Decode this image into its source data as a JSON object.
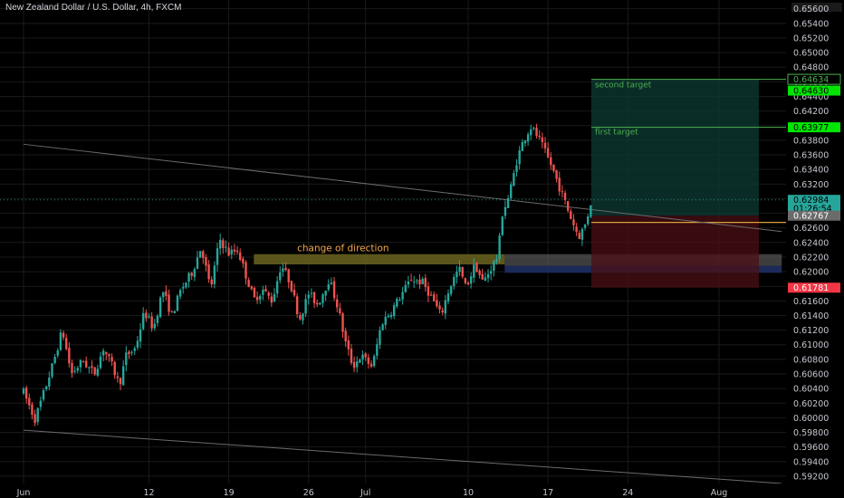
{
  "header": {
    "title": "New Zealand Dollar / U.S. Dollar, 4h, FXCM"
  },
  "colors": {
    "background": "#000000",
    "up": "#26a69a",
    "down": "#ef5350",
    "grid": "#1a1a1a",
    "target_line": "#4caf50",
    "target_zone": "#0e3b33",
    "stop_zone": "#4a0f14",
    "supply_band": "#6b6420",
    "demand_band": "#1e2f63",
    "trendline": "#6b6b6b"
  },
  "annotations": {
    "change_of_direction": "change of direction",
    "second_target": "second target",
    "first_target": "first target"
  },
  "chart_data": {
    "type": "candlestick",
    "symbol": "NZDUSD",
    "title": "New Zealand Dollar / U.S. Dollar, 4h, FXCM",
    "interval": "4h",
    "ylim": [
      0.591,
      0.6572
    ],
    "y_ticks": [
      "0.65600",
      "0.65400",
      "0.65200",
      "0.65000",
      "0.64800",
      "0.64600",
      "0.64400",
      "0.64200",
      "0.64000",
      "0.63800",
      "0.63600",
      "0.63400",
      "0.63200",
      "0.63000",
      "0.62800",
      "0.62600",
      "0.62400",
      "0.62200",
      "0.62000",
      "0.61800",
      "0.61600",
      "0.61400",
      "0.61200",
      "0.61000",
      "0.60800",
      "0.60600",
      "0.60400",
      "0.60200",
      "0.60000",
      "0.59800",
      "0.59600",
      "0.59400",
      "0.59200"
    ],
    "x_ticks": [
      {
        "label": "Jun",
        "day": 0
      },
      {
        "label": "12",
        "day": 11
      },
      {
        "label": "19",
        "day": 18
      },
      {
        "label": "26",
        "day": 25
      },
      {
        "label": "Jul",
        "day": 30
      },
      {
        "label": "10",
        "day": 39
      },
      {
        "label": "17",
        "day": 46
      },
      {
        "label": "24",
        "day": 53
      },
      {
        "label": "Aug",
        "day": 61
      }
    ],
    "price_tags": [
      {
        "label": "0.64634",
        "value": 0.64634,
        "style": "green-outline"
      },
      {
        "label": "0.64630",
        "value": 0.6448,
        "style": "green-solid"
      },
      {
        "label": "0.63977",
        "value": 0.63977,
        "style": "green-solid"
      },
      {
        "label": "0.62984",
        "value": 0.62984,
        "style": "teal"
      },
      {
        "label": "01:26:54",
        "value": 0.62868,
        "style": "teal"
      },
      {
        "label": "0.62767",
        "value": 0.62767,
        "style": "gray"
      },
      {
        "label": "0.61781",
        "value": 0.61781,
        "style": "red"
      }
    ],
    "waypoints": [
      [
        0,
        0.6035
      ],
      [
        1,
        0.5998
      ],
      [
        1.8,
        0.6035
      ],
      [
        2.6,
        0.6075
      ],
      [
        3.4,
        0.612
      ],
      [
        4.2,
        0.606
      ],
      [
        5.2,
        0.6078
      ],
      [
        6.2,
        0.606
      ],
      [
        7,
        0.6095
      ],
      [
        7.8,
        0.607
      ],
      [
        8.4,
        0.6045
      ],
      [
        9,
        0.6085
      ],
      [
        9.8,
        0.6095
      ],
      [
        10.6,
        0.6145
      ],
      [
        11.4,
        0.6122
      ],
      [
        12.2,
        0.6175
      ],
      [
        13,
        0.614
      ],
      [
        13.8,
        0.6175
      ],
      [
        14.8,
        0.62
      ],
      [
        15.6,
        0.6235
      ],
      [
        16.4,
        0.6175
      ],
      [
        17.2,
        0.6245
      ],
      [
        18,
        0.6225
      ],
      [
        18.8,
        0.623
      ],
      [
        19.4,
        0.62
      ],
      [
        20.2,
        0.6162
      ],
      [
        21,
        0.6175
      ],
      [
        21.8,
        0.616
      ],
      [
        22.6,
        0.621
      ],
      [
        23.4,
        0.6185
      ],
      [
        24.2,
        0.6135
      ],
      [
        25,
        0.617
      ],
      [
        25.8,
        0.6155
      ],
      [
        26.8,
        0.619
      ],
      [
        27.6,
        0.615
      ],
      [
        28.2,
        0.6105
      ],
      [
        28.9,
        0.607
      ],
      [
        29.6,
        0.6085
      ],
      [
        30.6,
        0.607
      ],
      [
        31.4,
        0.613
      ],
      [
        32.2,
        0.6145
      ],
      [
        33,
        0.6165
      ],
      [
        34,
        0.619
      ],
      [
        35,
        0.6185
      ],
      [
        35.8,
        0.6165
      ],
      [
        36.6,
        0.614
      ],
      [
        37.4,
        0.618
      ],
      [
        38.2,
        0.6205
      ],
      [
        38.8,
        0.6178
      ],
      [
        39.6,
        0.621
      ],
      [
        40.3,
        0.6185
      ],
      [
        41,
        0.6205
      ],
      [
        41.6,
        0.6222
      ],
      [
        42,
        0.628
      ],
      [
        42.6,
        0.6305
      ],
      [
        43.3,
        0.6355
      ],
      [
        43.9,
        0.6382
      ],
      [
        44.5,
        0.6398
      ],
      [
        45.1,
        0.6385
      ],
      [
        45.7,
        0.6365
      ],
      [
        46.3,
        0.6345
      ],
      [
        46.9,
        0.632
      ],
      [
        47.5,
        0.6295
      ],
      [
        48.1,
        0.627
      ],
      [
        48.7,
        0.6248
      ],
      [
        49.3,
        0.6265
      ],
      [
        49.8,
        0.6298
      ]
    ],
    "levels": {
      "second_target": 0.64634,
      "first_target": 0.63977,
      "entry": 0.62767,
      "stop": 0.61781,
      "entry_line": 0.62675
    },
    "zones": [
      {
        "name": "change of direction",
        "from_day": 20.2,
        "to_day": 42.2,
        "low": 0.621,
        "high": 0.6224
      },
      {
        "name": "supply band",
        "from_day": 42.2,
        "to_day": 66.5,
        "low": 0.6208,
        "high": 0.6224
      },
      {
        "name": "demand band",
        "from_day": 42.2,
        "to_day": 66.5,
        "low": 0.61985,
        "high": 0.6208
      }
    ],
    "position": {
      "from_day": 49.8,
      "to_day": 64.5,
      "entry": 0.62767,
      "second_target": 0.64634,
      "first_target": 0.63977,
      "stop": 0.61781
    },
    "trendlines": [
      {
        "x1_day": 0,
        "y1": 0.63745,
        "x2_day": 66.5,
        "y2": 0.6255
      },
      {
        "x1_day": 0,
        "y1": 0.5983,
        "x2_day": 66.5,
        "y2": 0.591
      }
    ]
  }
}
